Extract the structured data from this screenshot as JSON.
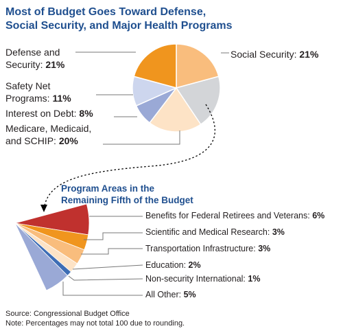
{
  "page": {
    "title_line1": "Most of Budget Goes Toward Defense,",
    "title_line2": "Social Security, and Major Health Programs",
    "source": "Source: Congressional Budget Office",
    "note": "Note: Percentages may not total 100 due to rounding."
  },
  "chart_data": [
    {
      "type": "pie",
      "title": "Most of Budget Goes Toward Defense, Social Security, and Major Health Programs",
      "slices": [
        {
          "lines": [
            "Social Security:"
          ],
          "value_label": "21%",
          "value": 21,
          "color": "#f9bd7d"
        },
        {
          "lines": [
            "Remaining fifth"
          ],
          "value_label": "",
          "value": 20,
          "color": "#d3d5d8"
        },
        {
          "lines": [
            "Medicare, Medicaid,",
            "and SCHIP:"
          ],
          "value_label": "20%",
          "value": 20,
          "color": "#fde3c6"
        },
        {
          "lines": [
            "Interest on Debt:"
          ],
          "value_label": "8%",
          "value": 8,
          "color": "#9aa9d6"
        },
        {
          "lines": [
            "Safety Net",
            "Programs:"
          ],
          "value_label": "11%",
          "value": 11,
          "color": "#cdd6ee"
        },
        {
          "lines": [
            "Defense and",
            "Security:"
          ],
          "value_label": "21%",
          "value": 21,
          "color": "#f0951e"
        }
      ]
    },
    {
      "type": "pie",
      "title": "Program Areas in the Remaining Fifth of the Budget",
      "title_line1": "Program Areas in the",
      "title_line2": "Remaining Fifth of the Budget",
      "slices": [
        {
          "label": "Benefits for Federal Retirees and Veterans:",
          "value_label": "6%",
          "value": 6,
          "color": "#c0312e"
        },
        {
          "label": "Scientific and Medical Research:",
          "value_label": "3%",
          "value": 3,
          "color": "#f0951e"
        },
        {
          "label": "Transportation Infrastructure:",
          "value_label": "3%",
          "value": 3,
          "color": "#f9bd7d"
        },
        {
          "label": "Education:",
          "value_label": "2%",
          "value": 2,
          "color": "#fde3c6"
        },
        {
          "label": "Non-security International:",
          "value_label": "1%",
          "value": 1,
          "color": "#3d6db5"
        },
        {
          "label": "All Other:",
          "value_label": "5%",
          "value": 5,
          "color": "#9aa9d6"
        }
      ]
    }
  ]
}
